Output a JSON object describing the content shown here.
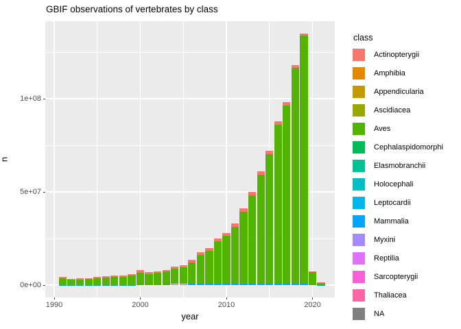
{
  "chart_data": {
    "type": "bar",
    "stacked": true,
    "title": "GBIF observations of vertebrates by class",
    "xlabel": "year",
    "ylabel": "n",
    "panel_background": "#EBEBEB",
    "gridline_color": "#FFFFFF",
    "grid": true,
    "legend_position": "right",
    "xlim": [
      1989.9,
      2022.1
    ],
    "ylim": [
      -7000000,
      141750000
    ],
    "x_major_ticks": [
      1990,
      2000,
      2010,
      2020
    ],
    "x_minor_gridlines": [
      1995,
      2005,
      2015
    ],
    "y_major_ticks": [
      {
        "label": "0e+00",
        "value": 0
      },
      {
        "label": "5e+07",
        "value": 50000000
      },
      {
        "label": "1e+08",
        "value": 100000000
      }
    ],
    "y_minor_gridlines": [
      25000000,
      75000000,
      125000000
    ],
    "years": [
      1991,
      1992,
      1993,
      1994,
      1995,
      1996,
      1997,
      1998,
      1999,
      2000,
      2001,
      2002,
      2003,
      2004,
      2005,
      2006,
      2007,
      2008,
      2009,
      2010,
      2011,
      2012,
      2013,
      2014,
      2015,
      2016,
      2017,
      2018,
      2019,
      2020,
      2021
    ],
    "series_note": "stacked top-to-bottom: Actinopterygii, Aves, Mammalia; other classes in legend are too small to be visible",
    "series": [
      {
        "name": "Actinopterygii",
        "color": "#F8766D",
        "stack_position": "top",
        "values": [
          700000,
          400000,
          450000,
          450000,
          500000,
          550000,
          600000,
          900000,
          1000000,
          1500000,
          1000000,
          850000,
          850000,
          1000000,
          1100000,
          1200000,
          1400000,
          1500000,
          1500000,
          1500000,
          1600000,
          1700000,
          1800000,
          1800000,
          1800000,
          1800000,
          1500000,
          1400000,
          1300000,
          350000,
          80000
        ]
      },
      {
        "name": "Aves",
        "color": "#53B400",
        "stack_position": "middle",
        "values": [
          3570000,
          2870000,
          3020000,
          3120000,
          3760000,
          4010000,
          4350000,
          4350000,
          4900000,
          6000000,
          5550000,
          6050000,
          6850000,
          8350000,
          9150000,
          11700000,
          15500000,
          17850000,
          22850000,
          25800000,
          30700000,
          38550000,
          47450000,
          58400000,
          69400000,
          85400000,
          95700000,
          115800000,
          132900000,
          6700000,
          1100000
        ]
      },
      {
        "name": "Mammalia",
        "color": "#06A4FF",
        "stack_position": "bottom",
        "values": [
          30000,
          30000,
          30000,
          30000,
          40000,
          40000,
          50000,
          50000,
          100000,
          500000,
          450000,
          450000,
          500000,
          550000,
          550000,
          600000,
          600000,
          650000,
          650000,
          700000,
          700000,
          750000,
          750000,
          800000,
          800000,
          800000,
          800000,
          800000,
          800000,
          450000,
          120000
        ]
      }
    ],
    "totals": [
      4300000,
      3300000,
      3500000,
      3600000,
      4300000,
      4600000,
      5000000,
      5300000,
      6000000,
      8000000,
      7000000,
      7350000,
      8200000,
      9900000,
      10800000,
      13500000,
      17500000,
      20000000,
      25000000,
      28000000,
      33000000,
      41000000,
      50000000,
      61000000,
      72000000,
      88000000,
      98000000,
      118000000,
      135000000,
      7500000,
      1300000
    ]
  },
  "legend": {
    "title": "class",
    "items": [
      {
        "name": "Actinopterygii",
        "color": "#F8766D"
      },
      {
        "name": "Amphibia",
        "color": "#E38900"
      },
      {
        "name": "Appendicularia",
        "color": "#C49A00"
      },
      {
        "name": "Ascidiacea",
        "color": "#99A800"
      },
      {
        "name": "Aves",
        "color": "#53B400"
      },
      {
        "name": "Cephalaspidomorphi",
        "color": "#00BC56"
      },
      {
        "name": "Elasmobranchii",
        "color": "#00C094"
      },
      {
        "name": "Holocephali",
        "color": "#00BFC4"
      },
      {
        "name": "Leptocardii",
        "color": "#00B6EB"
      },
      {
        "name": "Mammalia",
        "color": "#06A4FF"
      },
      {
        "name": "Myxini",
        "color": "#A58AFF"
      },
      {
        "name": "Reptilia",
        "color": "#DF70F8"
      },
      {
        "name": "Sarcopterygii",
        "color": "#FB61D7"
      },
      {
        "name": "Thaliacea",
        "color": "#FF66A8"
      },
      {
        "name": "NA",
        "color": "#7F7F7F"
      }
    ]
  }
}
